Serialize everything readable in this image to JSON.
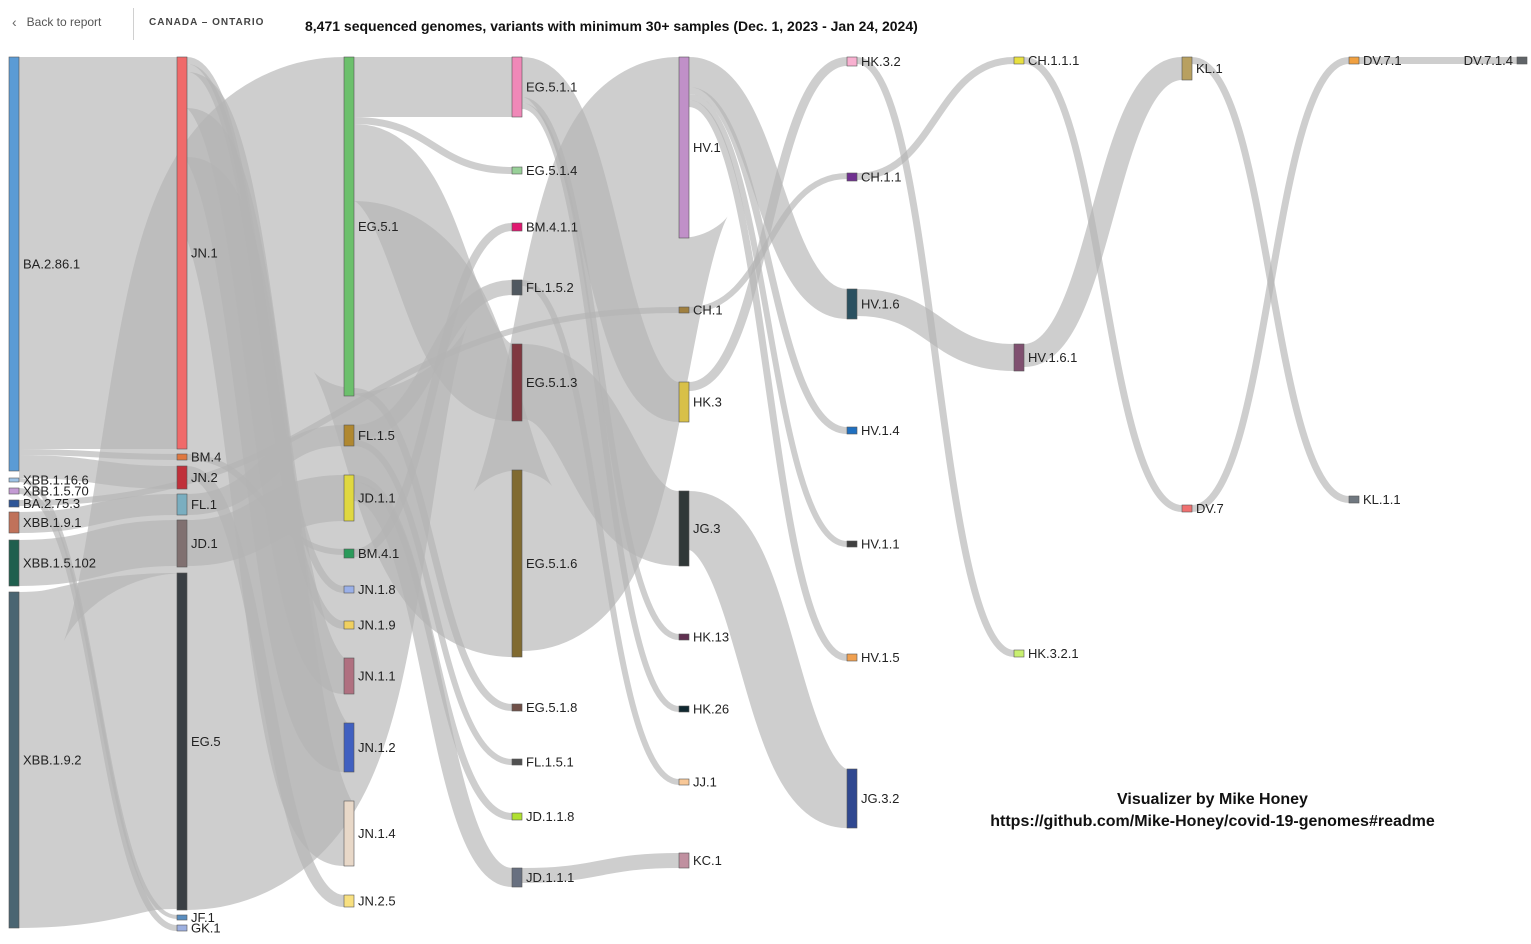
{
  "header": {
    "back_label": "Back to report",
    "region": "CANADA – ONTARIO",
    "title": "8,471 sequenced genomes, variants with minimum 30+ samples (Dec. 1, 2023 - Jan 24, 2024)"
  },
  "credit": {
    "line1": "Visualizer by Mike Honey",
    "line2": "https://github.com/Mike-Honey/covid-19-genomes#readme"
  },
  "icons": {
    "back": "chevron-left-icon"
  },
  "sankey": {
    "link_color": "#b4b4b4",
    "nodes": [
      {
        "id": "BA.2.86.1",
        "color": "#5b9bd5"
      },
      {
        "id": "XBB.1.16.6",
        "color": "#9dc3e6"
      },
      {
        "id": "XBB.1.5.70",
        "color": "#c39bd3"
      },
      {
        "id": "BA.2.75.3",
        "color": "#2e5597"
      },
      {
        "id": "XBB.1.9.1",
        "color": "#c0725a"
      },
      {
        "id": "XBB.1.5.102",
        "color": "#1f5f4e"
      },
      {
        "id": "XBB.1.9.2",
        "color": "#4a6572"
      },
      {
        "id": "JN.1",
        "color": "#f06a6a"
      },
      {
        "id": "BM.4",
        "color": "#e07840"
      },
      {
        "id": "JN.2",
        "color": "#c0303a"
      },
      {
        "id": "FL.1",
        "color": "#7aaec0"
      },
      {
        "id": "JD.1",
        "color": "#807070"
      },
      {
        "id": "EG.5",
        "color": "#3a3f44"
      },
      {
        "id": "JF.1",
        "color": "#5a8ec0"
      },
      {
        "id": "GK.1",
        "color": "#9db0e0"
      },
      {
        "id": "EG.5.1",
        "color": "#6cc06c"
      },
      {
        "id": "FL.1.5",
        "color": "#b08830"
      },
      {
        "id": "JD.1.1",
        "color": "#e0d840"
      },
      {
        "id": "BM.4.1",
        "color": "#2a9a5a"
      },
      {
        "id": "JN.1.8",
        "color": "#9ab0e8"
      },
      {
        "id": "JN.1.9",
        "color": "#f0d060"
      },
      {
        "id": "JN.1.1",
        "color": "#b07080"
      },
      {
        "id": "JN.1.2",
        "color": "#4060c0"
      },
      {
        "id": "JN.1.4",
        "color": "#e8d8c8"
      },
      {
        "id": "JN.2.5",
        "color": "#f8e080"
      },
      {
        "id": "EG.5.1.1",
        "color": "#f088b8"
      },
      {
        "id": "EG.5.1.4",
        "color": "#98d098"
      },
      {
        "id": "BM.4.1.1",
        "color": "#e01870"
      },
      {
        "id": "FL.1.5.2",
        "color": "#505860"
      },
      {
        "id": "EG.5.1.3",
        "color": "#803840"
      },
      {
        "id": "EG.5.1.6",
        "color": "#806a30"
      },
      {
        "id": "EG.5.1.8",
        "color": "#705048"
      },
      {
        "id": "FL.1.5.1",
        "color": "#505050"
      },
      {
        "id": "JD.1.1.8",
        "color": "#b0e030"
      },
      {
        "id": "JD.1.1.1",
        "color": "#687080"
      },
      {
        "id": "HV.1",
        "color": "#c090c8"
      },
      {
        "id": "CH.1",
        "color": "#a08040"
      },
      {
        "id": "HK.3",
        "color": "#d8c048"
      },
      {
        "id": "JG.3",
        "color": "#303838"
      },
      {
        "id": "HK.13",
        "color": "#603050"
      },
      {
        "id": "HK.26",
        "color": "#102830"
      },
      {
        "id": "JJ.1",
        "color": "#f8c898"
      },
      {
        "id": "KC.1",
        "color": "#c090a0"
      },
      {
        "id": "HK.3.2",
        "color": "#f8b0d0"
      },
      {
        "id": "CH.1.1",
        "color": "#703090"
      },
      {
        "id": "HV.1.6",
        "color": "#2a5060"
      },
      {
        "id": "HV.1.4",
        "color": "#2070c0"
      },
      {
        "id": "HV.1.1",
        "color": "#404040"
      },
      {
        "id": "HV.1.5",
        "color": "#f0a050"
      },
      {
        "id": "JG.3.2",
        "color": "#304890"
      },
      {
        "id": "CH.1.1.1",
        "color": "#e8e040"
      },
      {
        "id": "HV.1.6.1",
        "color": "#805070"
      },
      {
        "id": "HK.3.2.1",
        "color": "#c8f070"
      },
      {
        "id": "KL.1",
        "color": "#b8a060"
      },
      {
        "id": "DV.7",
        "color": "#f07070"
      },
      {
        "id": "DV.7.1",
        "color": "#f0a040"
      },
      {
        "id": "KL.1.1",
        "color": "#707880"
      },
      {
        "id": "DV.7.1.4",
        "color": "#606468"
      }
    ],
    "links": [
      {
        "source": "BA.2.86.1",
        "target": "JN.1"
      },
      {
        "source": "BA.2.86.1",
        "target": "BM.4"
      },
      {
        "source": "BA.2.86.1",
        "target": "JN.2"
      },
      {
        "source": "XBB.1.16.6",
        "target": "JF.1"
      },
      {
        "source": "XBB.1.5.70",
        "target": "GK.1"
      },
      {
        "source": "BA.2.75.3",
        "target": "CH.1"
      },
      {
        "source": "XBB.1.9.1",
        "target": "FL.1"
      },
      {
        "source": "XBB.1.5.102",
        "target": "JD.1"
      },
      {
        "source": "XBB.1.9.2",
        "target": "EG.5"
      },
      {
        "source": "JN.1",
        "target": "JN.1.8"
      },
      {
        "source": "JN.1",
        "target": "JN.1.9"
      },
      {
        "source": "JN.1",
        "target": "JN.1.1"
      },
      {
        "source": "JN.1",
        "target": "JN.1.2"
      },
      {
        "source": "JN.1",
        "target": "JN.1.4"
      },
      {
        "source": "BM.4",
        "target": "BM.4.1"
      },
      {
        "source": "JN.2",
        "target": "JN.2.5"
      },
      {
        "source": "FL.1",
        "target": "FL.1.5"
      },
      {
        "source": "JD.1",
        "target": "JD.1.1"
      },
      {
        "source": "EG.5",
        "target": "EG.5.1"
      },
      {
        "source": "EG.5.1",
        "target": "EG.5.1.1"
      },
      {
        "source": "EG.5.1",
        "target": "EG.5.1.4"
      },
      {
        "source": "EG.5.1",
        "target": "EG.5.1.3"
      },
      {
        "source": "EG.5.1",
        "target": "EG.5.1.6"
      },
      {
        "source": "EG.5.1",
        "target": "EG.5.1.8"
      },
      {
        "source": "FL.1.5",
        "target": "FL.1.5.2"
      },
      {
        "source": "FL.1.5",
        "target": "FL.1.5.1"
      },
      {
        "source": "JD.1.1",
        "target": "JD.1.1.8"
      },
      {
        "source": "JD.1.1",
        "target": "JD.1.1.1"
      },
      {
        "source": "BM.4.1",
        "target": "BM.4.1.1"
      },
      {
        "source": "EG.5.1.6",
        "target": "HV.1"
      },
      {
        "source": "EG.5.1.1",
        "target": "HK.3"
      },
      {
        "source": "EG.5.1.1",
        "target": "HK.13"
      },
      {
        "source": "EG.5.1.1",
        "target": "HK.26"
      },
      {
        "source": "EG.5.1.3",
        "target": "JG.3"
      },
      {
        "source": "FL.1.5.2",
        "target": "JJ.1"
      },
      {
        "source": "JD.1.1.1",
        "target": "KC.1"
      },
      {
        "source": "HV.1",
        "target": "HV.1.6"
      },
      {
        "source": "HV.1",
        "target": "HV.1.4"
      },
      {
        "source": "HV.1",
        "target": "HV.1.1"
      },
      {
        "source": "HV.1",
        "target": "HV.1.5"
      },
      {
        "source": "HK.3",
        "target": "HK.3.2"
      },
      {
        "source": "CH.1",
        "target": "CH.1.1"
      },
      {
        "source": "JG.3",
        "target": "JG.3.2"
      },
      {
        "source": "CH.1.1",
        "target": "CH.1.1.1"
      },
      {
        "source": "HV.1.6",
        "target": "HV.1.6.1"
      },
      {
        "source": "HK.3.2",
        "target": "HK.3.2.1"
      },
      {
        "source": "HV.1.6.1",
        "target": "KL.1"
      },
      {
        "source": "CH.1.1.1",
        "target": "DV.7"
      },
      {
        "source": "DV.7",
        "target": "DV.7.1"
      },
      {
        "source": "KL.1",
        "target": "KL.1.1"
      },
      {
        "source": "DV.7.1",
        "target": "DV.7.1.4"
      }
    ]
  }
}
